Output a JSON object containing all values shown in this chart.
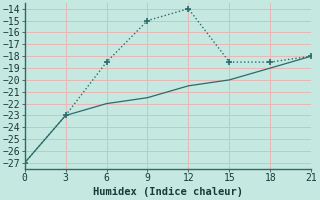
{
  "line1_x": [
    0,
    3,
    6,
    9,
    12,
    15,
    18,
    21
  ],
  "line1_y": [
    -27,
    -23,
    -18.5,
    -15,
    -14,
    -18.5,
    -18.5,
    -18
  ],
  "line2_x": [
    0,
    3,
    6,
    9,
    12,
    15,
    18,
    21
  ],
  "line2_y": [
    -27,
    -23,
    -22,
    -21.5,
    -20.5,
    -20,
    -19,
    -18
  ],
  "line_color": "#2a6b6b",
  "bg_color": "#c5e8e0",
  "grid_color": "#e8b8b8",
  "xlabel": "Humidex (Indice chaleur)",
  "xlim": [
    0,
    21
  ],
  "ylim": [
    -27.5,
    -13.5
  ],
  "xticks": [
    0,
    3,
    6,
    9,
    12,
    15,
    18,
    21
  ],
  "yticks": [
    -27,
    -26,
    -25,
    -24,
    -23,
    -22,
    -21,
    -20,
    -19,
    -18,
    -17,
    -16,
    -15,
    -14
  ],
  "xlabel_fontsize": 7.5,
  "tick_fontsize": 7
}
